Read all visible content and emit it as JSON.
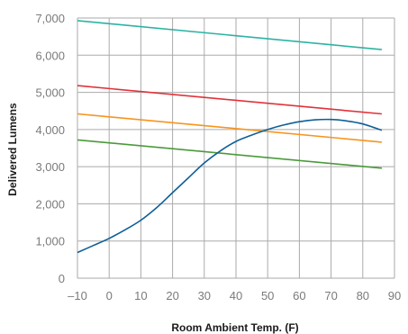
{
  "chart_data": {
    "type": "line",
    "title": "",
    "xlabel": "Room Ambient Temp. (F)",
    "ylabel": "Delivered Lumens",
    "xlim": [
      -10,
      90
    ],
    "ylim": [
      0,
      7000
    ],
    "x_ticks": [
      -10,
      0,
      10,
      20,
      30,
      40,
      50,
      60,
      70,
      80,
      90
    ],
    "x_tick_labels": [
      "–10",
      "0",
      "10",
      "20",
      "30",
      "40",
      "50",
      "60",
      "70",
      "80",
      "90"
    ],
    "y_ticks": [
      0,
      1000,
      2000,
      3000,
      4000,
      5000,
      6000,
      7000
    ],
    "y_tick_labels": [
      "0",
      "1,000",
      "2,000",
      "3,000",
      "4,000",
      "5,000",
      "6,000",
      "7,000"
    ],
    "grid": true,
    "legend": "none",
    "series": [
      {
        "color": "#2bb3a3",
        "x": [
          -10,
          86
        ],
        "y": [
          6930,
          6150
        ]
      },
      {
        "color": "#e0323a",
        "x": [
          -10,
          86
        ],
        "y": [
          5180,
          4420
        ]
      },
      {
        "color": "#f7941d",
        "x": [
          -10,
          86
        ],
        "y": [
          4420,
          3660
        ]
      },
      {
        "color": "#4a9a3a",
        "x": [
          -10,
          86
        ],
        "y": [
          3720,
          2960
        ]
      },
      {
        "color": "#0f5f96",
        "x": [
          -10,
          -5,
          0,
          5,
          10,
          15,
          20,
          25,
          30,
          35,
          40,
          45,
          50,
          55,
          60,
          65,
          70,
          75,
          80,
          86
        ],
        "y": [
          690,
          880,
          1070,
          1300,
          1560,
          1900,
          2300,
          2700,
          3100,
          3420,
          3680,
          3850,
          4000,
          4120,
          4210,
          4260,
          4270,
          4230,
          4150,
          3980
        ]
      }
    ]
  }
}
